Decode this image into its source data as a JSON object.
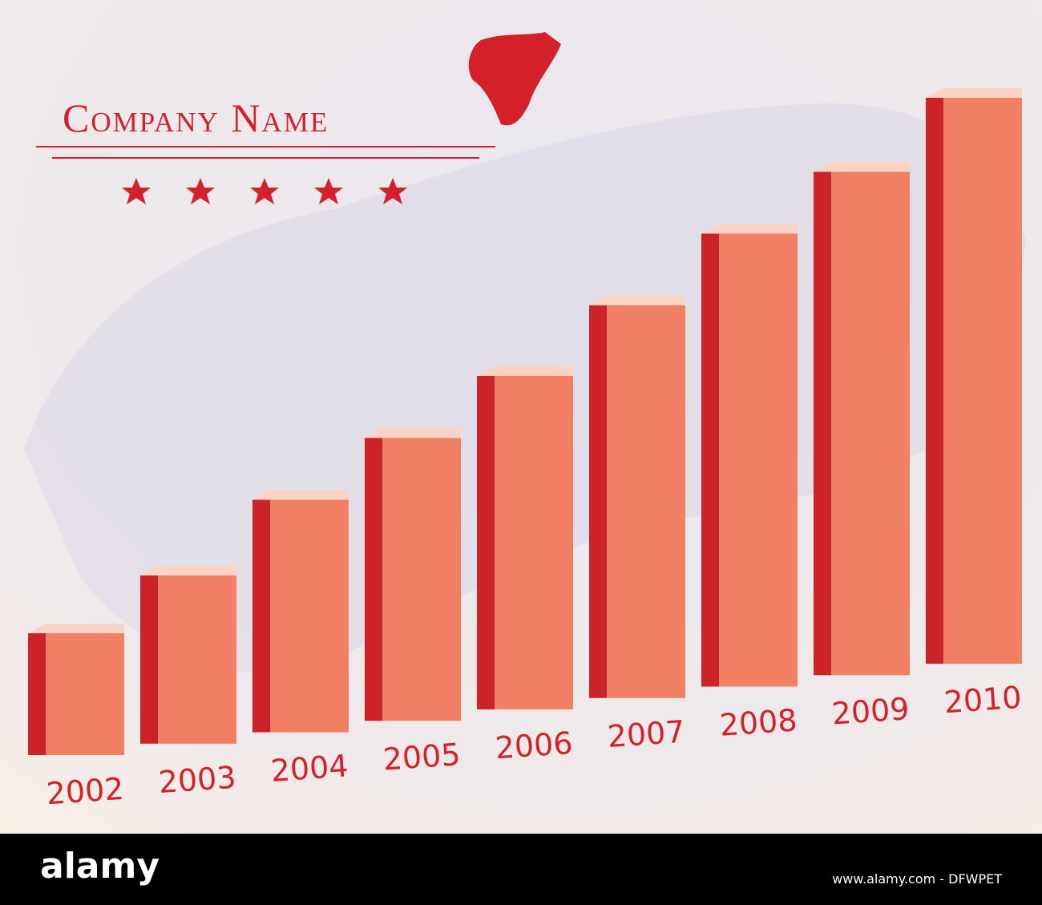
{
  "chart_data": {
    "type": "bar",
    "title": "Company Name",
    "categories": [
      "2002",
      "2003",
      "2004",
      "2005",
      "2006",
      "2007",
      "2008",
      "2009",
      "2010"
    ],
    "values": [
      152,
      210,
      290,
      353,
      416,
      490,
      565,
      628,
      706
    ],
    "color": "#f07f63"
  },
  "footer": {
    "logo": "alamy",
    "credit": "www.alamy.com - DFWPET"
  }
}
